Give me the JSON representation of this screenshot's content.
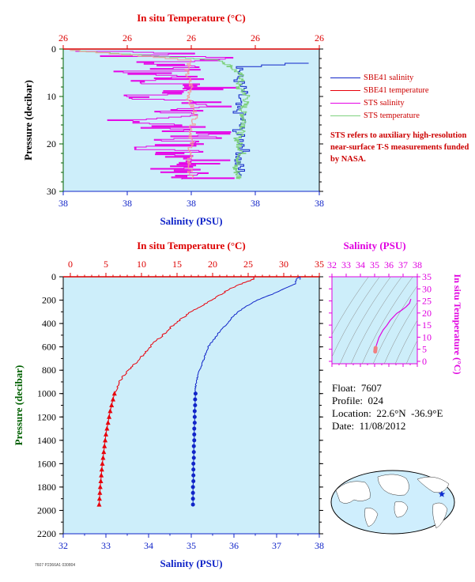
{
  "colors": {
    "plot_bg": "#cdeefa",
    "temperature": "#e8000b",
    "salinity": "#1024c8",
    "sts_salinity": "#e600e6",
    "sts_temperature": "#7fd17f",
    "sts_temp_pink": "#f49a9a",
    "ts_axis": "#e000e0",
    "pressure_label": "#006000",
    "title_red": "#dd0000"
  },
  "legend": {
    "items": [
      {
        "label": "SBE41 salinity",
        "color": "#1024c8"
      },
      {
        "label": "SBE41 temperature",
        "color": "#e8000b"
      },
      {
        "label": "STS salinity",
        "color": "#e600e6"
      },
      {
        "label": "STS temperature",
        "color": "#7fd17f"
      }
    ],
    "note": "STS refers to auxiliary high-resolution near-surface T-S measurements funded by NASA."
  },
  "info": {
    "float_label": "Float:",
    "float_value": "7607",
    "profile_label": "Profile:",
    "profile_value": "024",
    "location_label": "Location:",
    "location_value": "22.6°N  -36.9°E",
    "date_label": "Date:",
    "date_value": "11/08/2012"
  },
  "footnote": "7607 P2366A1 030804",
  "chart_data": [
    {
      "type": "line",
      "panel": "near-surface",
      "title": "In situ Temperature (°C)",
      "xlabel": "Salinity (PSU)",
      "ylabel": "Pressure (decibar)",
      "top_ticks": [
        "26",
        "26",
        "26",
        "26",
        "26"
      ],
      "bottom_ticks": [
        "38",
        "38",
        "38",
        "38",
        "38"
      ],
      "y_ticks": [
        0,
        10,
        20,
        30
      ],
      "ylim": [
        0,
        30
      ],
      "series": [
        {
          "name": "STS salinity",
          "x_frac": [
            0.05,
            0.62,
            0.18,
            0.7,
            0.35,
            0.55,
            0.25,
            0.5,
            0.3,
            0.6,
            0.32,
            0.58,
            0.3,
            0.55,
            0.4,
            0.6,
            0.42,
            0.58
          ],
          "y": [
            0.5,
            1.0,
            1.5,
            2.0,
            3.0,
            4.0,
            5.0,
            6.0,
            7.0,
            8.0,
            10.0,
            12.0,
            15.0,
            18.0,
            21.0,
            24.0,
            26.0,
            27.5
          ]
        },
        {
          "name": "SBE41 salinity",
          "x_frac": [
            0.98,
            0.7,
            0.68,
            0.7,
            0.67,
            0.7,
            0.68,
            0.71,
            0.68,
            0.7
          ],
          "y": [
            3.0,
            4.0,
            6.0,
            9.0,
            12.0,
            15.0,
            18.0,
            21.0,
            24.0,
            27.0
          ]
        },
        {
          "name": "STS temperature",
          "x_frac": [
            0.02,
            0.62,
            0.66,
            0.7,
            0.68,
            0.72,
            0.7,
            0.71,
            0.68,
            0.7,
            0.67,
            0.69
          ],
          "y": [
            0.3,
            2.5,
            4.0,
            6.0,
            8.0,
            10.0,
            13.0,
            16.0,
            19.0,
            22.0,
            25.0,
            27.5
          ]
        },
        {
          "name": "SBE41 temperature",
          "x_frac": [
            0.02,
            0.5,
            0.48,
            0.5,
            0.49,
            0.52,
            0.5,
            0.5,
            0.49,
            0.5
          ],
          "y": [
            0.3,
            2.5,
            5.0,
            8.0,
            11.0,
            14.0,
            17.0,
            20.0,
            24.0,
            27.5
          ]
        }
      ]
    },
    {
      "type": "line",
      "panel": "full-profile",
      "title": "In situ Temperature (°C)",
      "xlabel": "Salinity (PSU)",
      "ylabel": "Pressure (decibar)",
      "temperature_ticks": [
        0,
        5,
        10,
        15,
        20,
        25,
        30,
        35
      ],
      "temperature_range": [
        -1,
        35
      ],
      "salinity_ticks": [
        32,
        33,
        34,
        35,
        36,
        37,
        38
      ],
      "salinity_range": [
        32,
        38
      ],
      "pressure_ticks": [
        0,
        200,
        400,
        600,
        800,
        1000,
        1200,
        1400,
        1600,
        1800,
        2000,
        2200
      ],
      "ylim": [
        0,
        2200
      ],
      "series": [
        {
          "name": "SBE41 temperature",
          "pressure": [
            0,
            20,
            60,
            100,
            150,
            200,
            250,
            300,
            350,
            400,
            450,
            500,
            550,
            600,
            650,
            700,
            750,
            800,
            850,
            900,
            950,
            1000
          ],
          "value": [
            25.8,
            25.8,
            24.0,
            22.5,
            21.2,
            19.8,
            18.5,
            17.0,
            15.8,
            14.8,
            13.8,
            13.0,
            12.0,
            11.2,
            10.5,
            9.8,
            9.0,
            8.2,
            7.4,
            6.9,
            6.6,
            6.2
          ]
        },
        {
          "name": "SBE41 temperature (discrete)",
          "pressure": [
            1000,
            1050,
            1100,
            1150,
            1200,
            1250,
            1300,
            1350,
            1400,
            1450,
            1500,
            1550,
            1600,
            1650,
            1700,
            1750,
            1800,
            1850,
            1900,
            1950
          ],
          "value": [
            6.2,
            6.0,
            5.8,
            5.6,
            5.45,
            5.3,
            5.15,
            5.0,
            4.9,
            4.8,
            4.7,
            4.6,
            4.5,
            4.42,
            4.35,
            4.28,
            4.2,
            4.15,
            4.1,
            4.05
          ]
        },
        {
          "name": "SBE41 salinity",
          "pressure": [
            0,
            20,
            60,
            100,
            150,
            200,
            250,
            300,
            350,
            400,
            450,
            500,
            550,
            600,
            650,
            700,
            750,
            800,
            850,
            900,
            950,
            1000
          ],
          "value": [
            37.55,
            37.45,
            37.45,
            37.2,
            36.9,
            36.55,
            36.3,
            36.1,
            35.95,
            35.85,
            35.7,
            35.6,
            35.5,
            35.4,
            35.35,
            35.3,
            35.25,
            35.2,
            35.15,
            35.12,
            35.1,
            35.1
          ]
        },
        {
          "name": "SBE41 salinity (discrete)",
          "pressure": [
            1000,
            1050,
            1100,
            1150,
            1200,
            1250,
            1300,
            1350,
            1400,
            1450,
            1500,
            1550,
            1600,
            1650,
            1700,
            1750,
            1800,
            1850,
            1900,
            1950
          ],
          "value": [
            35.1,
            35.09,
            35.09,
            35.08,
            35.08,
            35.08,
            35.07,
            35.07,
            35.07,
            35.06,
            35.06,
            35.06,
            35.05,
            35.05,
            35.05,
            35.05,
            35.04,
            35.04,
            35.04,
            35.04
          ]
        }
      ]
    },
    {
      "type": "scatter",
      "panel": "T-S diagram",
      "title": "Salinity (PSU)",
      "ylabel": "In situ Temperature (°C)",
      "x_ticks": [
        32,
        33,
        34,
        35,
        36,
        37,
        38
      ],
      "xlim": [
        32,
        38
      ],
      "y_ticks": [
        0,
        5,
        10,
        15,
        20,
        25,
        30,
        35
      ],
      "ylim": [
        -1,
        35
      ],
      "series": [
        {
          "name": "T-S curve",
          "salinity": [
            35.04,
            35.06,
            35.1,
            35.3,
            35.6,
            35.85,
            36.1,
            36.55,
            36.9,
            37.2,
            37.45,
            37.55
          ],
          "temperature": [
            4.05,
            4.8,
            6.2,
            9.8,
            13.0,
            14.8,
            17.0,
            19.8,
            21.2,
            22.5,
            24.0,
            25.8
          ]
        }
      ]
    },
    {
      "type": "map",
      "panel": "float-location-globe",
      "marker": {
        "lat": 22.6,
        "lon": -36.9
      }
    }
  ]
}
